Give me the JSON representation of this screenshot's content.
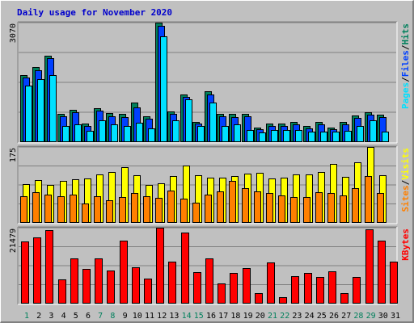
{
  "chart_data": {
    "type": "bar",
    "title": "Daily usage for November 2020",
    "categories": [
      "1",
      "2",
      "3",
      "4",
      "5",
      "6",
      "7",
      "8",
      "9",
      "10",
      "11",
      "12",
      "13",
      "14",
      "15",
      "16",
      "17",
      "18",
      "19",
      "20",
      "21",
      "22",
      "23",
      "24",
      "25",
      "26",
      "27",
      "28",
      "29",
      "30",
      "31"
    ],
    "weekend_days": [
      "1",
      "7",
      "8",
      "14",
      "15",
      "21",
      "22",
      "28",
      "29"
    ],
    "panels": [
      {
        "name": "hits-files-pages",
        "ymax_label": "3070",
        "ylim": [
          0,
          3070
        ],
        "legend": [
          "Pages",
          "/",
          "Files",
          "/",
          "Hits"
        ],
        "legend_colors": [
          "#00e0ff",
          "#000000",
          "#0040ff",
          "#000000",
          "#00805c"
        ],
        "series": [
          {
            "name": "Hits",
            "color": "#00805c",
            "values": [
              1720,
              1920,
              2220,
              720,
              820,
              480,
              880,
              750,
              720,
              1020,
              670,
              3070,
              780,
              1220,
              520,
              1300,
              730,
              730,
              720,
              380,
              480,
              470,
              520,
              410,
              520,
              380,
              520,
              680,
              770,
              700,
              0
            ]
          },
          {
            "name": "Files",
            "color": "#0040ff",
            "values": [
              1650,
              1840,
              2150,
              660,
              760,
              420,
              800,
              670,
              650,
              900,
              600,
              2980,
              720,
              1160,
              480,
              1220,
              670,
              650,
              660,
              330,
              420,
              420,
              450,
              350,
              450,
              330,
              460,
              630,
              700,
              650,
              0
            ]
          },
          {
            "name": "Pages",
            "color": "#00e0ff",
            "values": [
              1450,
              1620,
              1720,
              420,
              450,
              300,
              550,
              450,
              420,
              500,
              350,
              2720,
              550,
              1100,
              420,
              1020,
              420,
              450,
              320,
              250,
              320,
              310,
              320,
              280,
              280,
              270,
              300,
              420,
              550,
              260,
              0
            ]
          }
        ]
      },
      {
        "name": "visits-sites",
        "ymax_label": "175",
        "ylim": [
          0,
          175
        ],
        "legend": [
          "Sites",
          "/",
          "Visits"
        ],
        "legend_colors": [
          "#ff8000",
          "#000000",
          "#ffff00"
        ],
        "series": [
          {
            "name": "Visits",
            "color": "#ffff00",
            "values": [
              90,
              98,
              88,
              96,
              100,
              102,
              112,
              118,
              128,
              110,
              88,
              92,
              108,
              132,
              110,
              104,
              104,
              108,
              114,
              116,
              102,
              104,
              112,
              112,
              118,
              136,
              106,
              140,
              175,
              110,
              0
            ]
          },
          {
            "name": "Sites",
            "color": "#ff8000",
            "values": [
              62,
              70,
              65,
              62,
              66,
              45,
              62,
              52,
              60,
              68,
              62,
              58,
              74,
              55,
              46,
              66,
              72,
              96,
              80,
              72,
              68,
              63,
              60,
              60,
              70,
              68,
              64,
              80,
              108,
              68,
              0
            ]
          }
        ]
      },
      {
        "name": "kbytes",
        "ymax_label": "21479",
        "ylim": [
          0,
          21479
        ],
        "legend": [
          "KBytes"
        ],
        "legend_colors": [
          "#ff0000"
        ],
        "series": [
          {
            "name": "KBytes",
            "color": "#ff0000",
            "values": [
              17700,
              18700,
              20800,
              6800,
              12700,
              9800,
              12700,
              9300,
              17900,
              10300,
              7100,
              21479,
              11800,
              20100,
              9000,
              12900,
              5600,
              8600,
              10000,
              3000,
              11700,
              1800,
              7800,
              8700,
              7500,
              9200,
              3000,
              7600,
              21000,
              17800,
              11900
            ]
          }
        ]
      }
    ]
  }
}
